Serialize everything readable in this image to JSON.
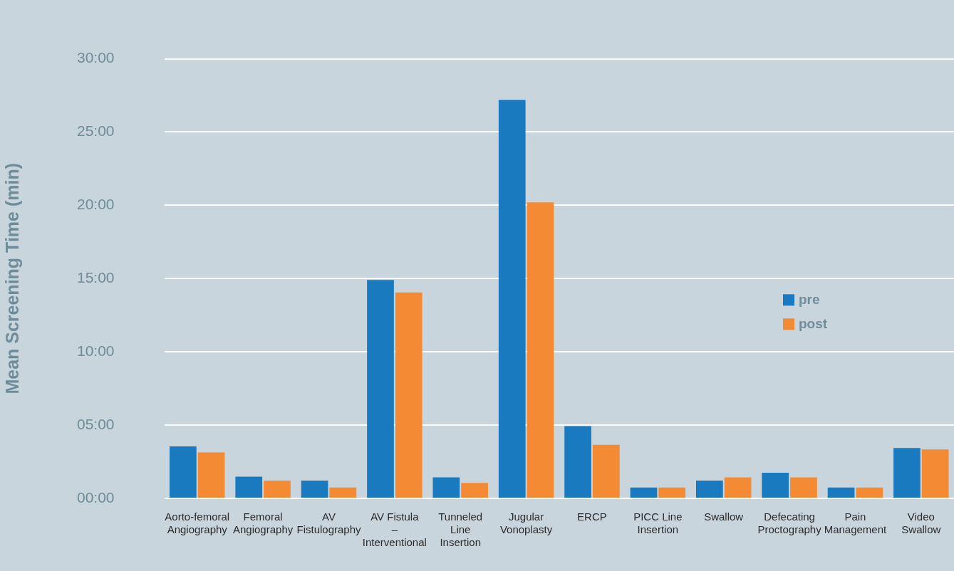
{
  "chart_data": {
    "type": "bar",
    "ylabel": "Mean Screening Time (min)",
    "categories": [
      "Aorto-femoral Angiography",
      "Femoral Angiography",
      "AV Fistulography",
      "AV Fistula – Interventional",
      "Tunneled Line Insertion",
      "Jugular Vonoplasty",
      "ERCP",
      "PICC Line Insertion",
      "Swallow",
      "Defecating Proctography",
      "Pain Management",
      "Video Swallow"
    ],
    "series": [
      {
        "name": "pre",
        "color": "#1a7abf",
        "values": [
          3.55,
          1.48,
          1.22,
          14.9,
          1.43,
          27.2,
          4.93,
          0.74,
          1.22,
          1.75,
          0.74,
          3.44
        ]
      },
      {
        "name": "post",
        "color": "#f48a33",
        "values": [
          3.13,
          1.22,
          0.74,
          14.05,
          1.06,
          20.2,
          3.66,
          0.74,
          1.43,
          1.43,
          0.74,
          3.34
        ]
      }
    ],
    "ylim": [
      0,
      30
    ],
    "yticks": [
      {
        "value": 0,
        "label": "00:00"
      },
      {
        "value": 5,
        "label": "05:00"
      },
      {
        "value": 10,
        "label": "10:00"
      },
      {
        "value": 15,
        "label": "15:00"
      },
      {
        "value": 20,
        "label": "20:00"
      },
      {
        "value": 25,
        "label": "25:00"
      },
      {
        "value": 30,
        "label": "30:00"
      }
    ],
    "grid": "y",
    "legend": "right"
  }
}
